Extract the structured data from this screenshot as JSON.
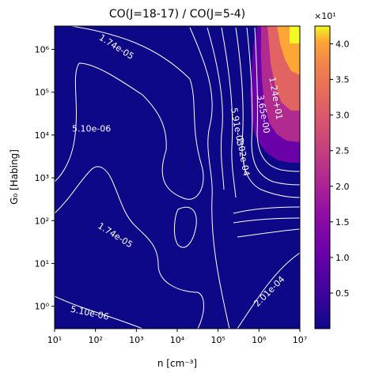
{
  "chart_data": {
    "type": "heatmap",
    "title": "CO(J=18-17) / CO(J=5-4)",
    "xlabel": "n [cm⁻³]",
    "ylabel": "G₀ [Habing]",
    "x_scale": "log",
    "y_scale": "log",
    "xlim": [
      10,
      10000000
    ],
    "ylim": [
      0.3,
      3500000
    ],
    "x_ticks": [
      {
        "value": 10,
        "label": "10¹"
      },
      {
        "value": 100,
        "label": "10²"
      },
      {
        "value": 1000,
        "label": "10³"
      },
      {
        "value": 10000,
        "label": "10⁴"
      },
      {
        "value": 100000,
        "label": "10⁵"
      },
      {
        "value": 1000000,
        "label": "10⁶"
      },
      {
        "value": 10000000,
        "label": "10⁷"
      }
    ],
    "y_ticks": [
      {
        "value": 1,
        "label": "10⁰"
      },
      {
        "value": 10,
        "label": "10¹"
      },
      {
        "value": 100,
        "label": "10²"
      },
      {
        "value": 1000,
        "label": "10³"
      },
      {
        "value": 10000,
        "label": "10⁴"
      },
      {
        "value": 100000,
        "label": "10⁵"
      },
      {
        "value": 1000000,
        "label": "10⁶"
      }
    ],
    "colormap": "plasma",
    "colorbar": {
      "range": [
        0.0,
        4.25
      ],
      "ticks": [
        "0.5",
        "1.0",
        "1.5",
        "2.0",
        "2.5",
        "3.0",
        "3.5",
        "4.0"
      ],
      "tick_values": [
        0.5,
        1.0,
        1.5,
        2.0,
        2.5,
        3.0,
        3.5,
        4.0
      ],
      "multiplier_label": "×10¹"
    },
    "contour_labels": [
      {
        "text": "1.74e-05",
        "x": 300,
        "y": 1000000
      },
      {
        "text": "5.10e-06",
        "x": 80,
        "y": 12000
      },
      {
        "text": "1.74e-05",
        "x": 280,
        "y": 40
      },
      {
        "text": "5.10e-06",
        "x": 70,
        "y": 0.6
      },
      {
        "text": "2.01e-04",
        "x": 2000000,
        "y": 2
      },
      {
        "text": "1.24e+01",
        "x": 2200000,
        "y": 70000
      },
      {
        "text": "3.65e-00",
        "x": 1100000,
        "y": 30000
      },
      {
        "text": "5.91e-03",
        "x": 250000,
        "y": 15000
      },
      {
        "text": "2.02e-04",
        "x": 350000,
        "y": 3000
      }
    ]
  }
}
